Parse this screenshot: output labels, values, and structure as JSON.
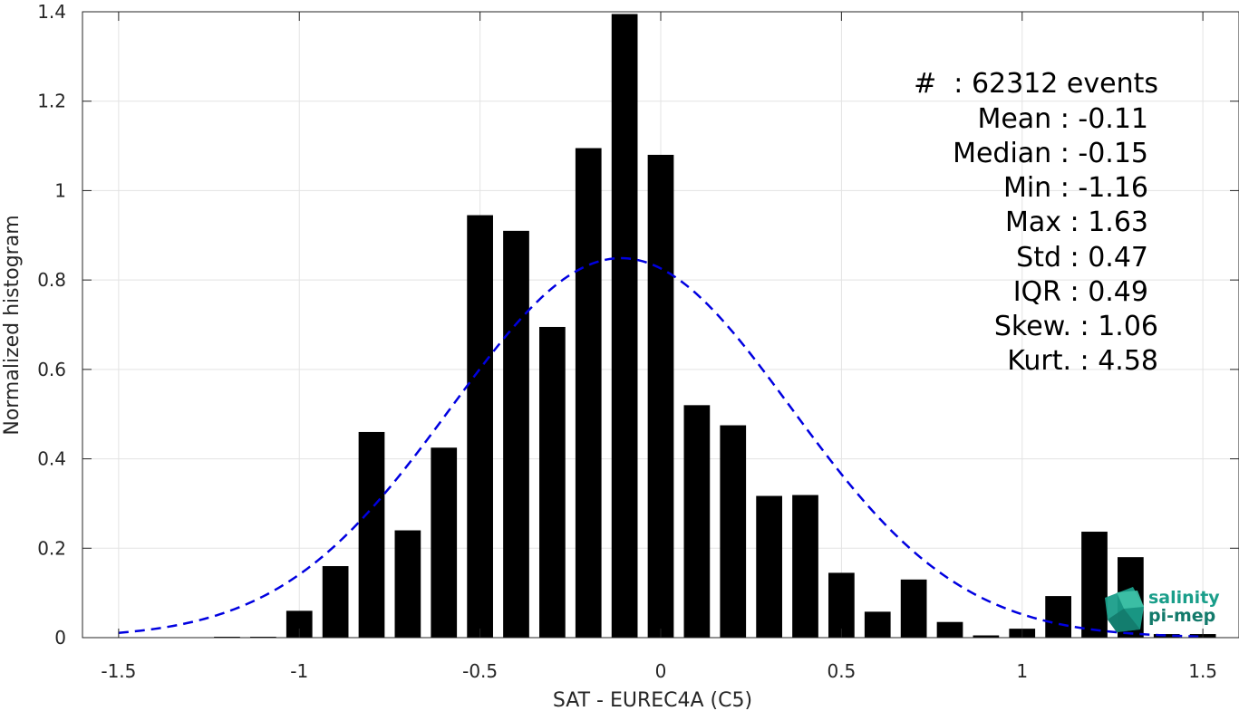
{
  "chart_data": {
    "type": "bar",
    "xlabel": "SAT - EUREC4A (C5)",
    "ylabel": "Normalized histogram",
    "xlim": [
      -1.6,
      1.6
    ],
    "ylim": [
      0,
      1.4
    ],
    "xticks": [
      -1.5,
      -1,
      -0.5,
      0,
      0.5,
      1,
      1.5
    ],
    "xtick_labels": [
      "-1.5",
      "-1",
      "-0.5",
      "0",
      "0.5",
      "1",
      "1.5"
    ],
    "yticks": [
      0,
      0.2,
      0.4,
      0.6,
      0.8,
      1,
      1.2,
      1.4
    ],
    "ytick_labels": [
      "0",
      "0.2",
      "0.4",
      "0.6",
      "0.8",
      "1",
      "1.2",
      "1.4"
    ],
    "grid": true,
    "bar_color": "#000000",
    "bin_width": 0.1,
    "bins": [
      -1.5,
      -1.4,
      -1.3,
      -1.2,
      -1.1,
      -1.0,
      -0.9,
      -0.8,
      -0.7,
      -0.6,
      -0.5,
      -0.4,
      -0.3,
      -0.2,
      -0.1,
      0.0,
      0.1,
      0.2,
      0.3,
      0.4,
      0.5,
      0.6,
      0.7,
      0.8,
      0.9,
      1.0,
      1.1,
      1.2,
      1.3,
      1.4,
      1.5
    ],
    "values": [
      0,
      0,
      0,
      0.002,
      0.002,
      0.06,
      0.16,
      0.46,
      0.24,
      0.425,
      0.945,
      0.91,
      0.695,
      1.095,
      1.395,
      1.08,
      0.52,
      0.475,
      0.317,
      0.319,
      0.145,
      0.058,
      0.13,
      0.035,
      0.005,
      0.02,
      0.093,
      0.237,
      0.18,
      0.008,
      0.008
    ],
    "fit": {
      "type": "normal",
      "mean": -0.11,
      "std": 0.47,
      "color": "#0000e0",
      "style": "dashed"
    },
    "annotations": [
      "#  : 62312 events",
      "Mean : -0.11",
      "Median : -0.15",
      "Min : -1.16",
      "Max : 1.63",
      "Std : 0.47",
      "IQR : 0.49",
      "Skew. : 1.06",
      "Kurt. : 4.58"
    ]
  },
  "logo": {
    "line1": "salinity",
    "line2": "pi-mep",
    "color": "#1a9e8a"
  }
}
